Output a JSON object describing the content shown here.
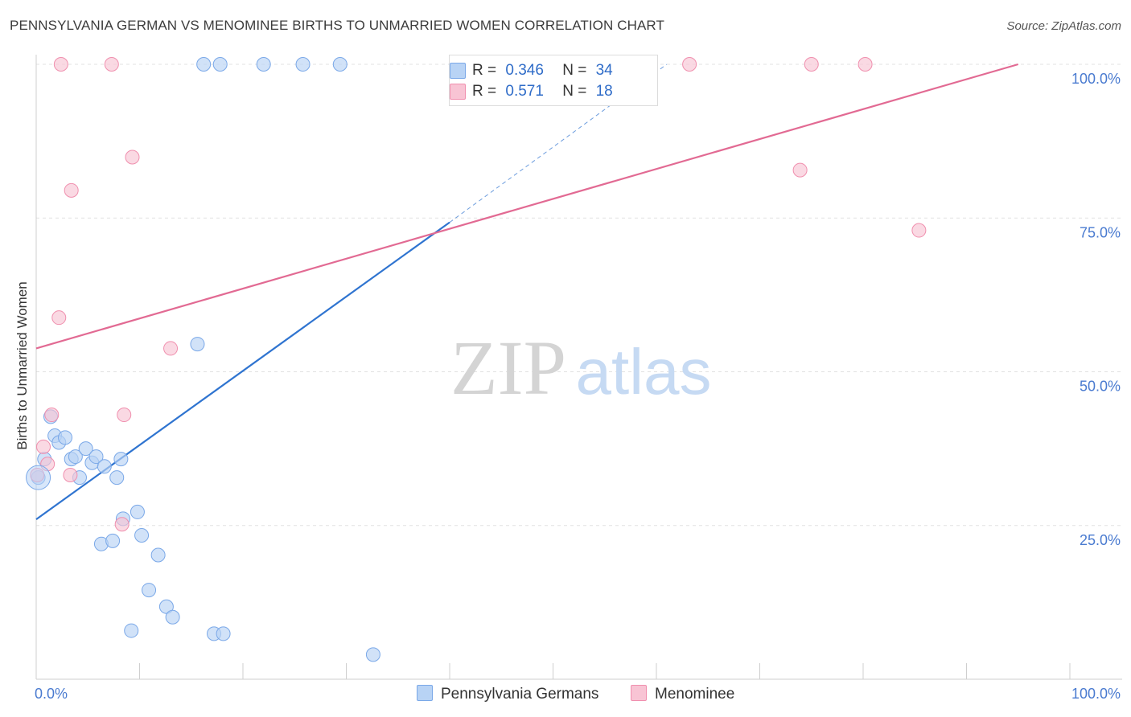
{
  "title": "PENNSYLVANIA GERMAN VS MENOMINEE BIRTHS TO UNMARRIED WOMEN CORRELATION CHART",
  "source": "Source: ZipAtlas.com",
  "watermark": {
    "zip": "ZIP",
    "atlas": "atlas"
  },
  "legend": {
    "rows": [
      {
        "r_label": "R =",
        "r_value": "0.346",
        "n_label": "N =",
        "n_value": "34",
        "color": "#b8d3f5"
      },
      {
        "r_label": "R =",
        "r_value": "0.571",
        "n_label": "N =",
        "n_value": "18",
        "color": "#f8c4d4"
      }
    ]
  },
  "bottom_legend": {
    "items": [
      {
        "label": "Pennsylvania Germans",
        "color": "#b8d3f5"
      },
      {
        "label": "Menominee",
        "color": "#f8c4d4"
      }
    ]
  },
  "chart_data": {
    "type": "scatter",
    "title": "PENNSYLVANIA GERMAN VS MENOMINEE BIRTHS TO UNMARRIED WOMEN CORRELATION CHART",
    "xlabel": "",
    "ylabel": "Births to Unmarried Women",
    "xlim": [
      0,
      100
    ],
    "ylim": [
      0,
      100
    ],
    "x_tick_labels": [
      "0.0%",
      "100.0%"
    ],
    "y_tick_labels": [
      "25.0%",
      "50.0%",
      "75.0%",
      "100.0%"
    ],
    "y_ticks": [
      25,
      50,
      75,
      100
    ],
    "grid": true,
    "legend_position": "top-center",
    "series": [
      {
        "name": "Pennsylvania Germans",
        "color": "#7aa8e8",
        "fill": "#b8d3f5",
        "line_color": "#2f74d0",
        "points": [
          [
            0.2,
            32.8
          ],
          [
            0.8,
            35.8
          ],
          [
            1.4,
            42.7
          ],
          [
            1.8,
            39.6
          ],
          [
            2.2,
            38.5
          ],
          [
            2.8,
            39.3
          ],
          [
            3.4,
            35.8
          ],
          [
            3.8,
            36.2
          ],
          [
            4.2,
            32.8
          ],
          [
            4.8,
            37.5
          ],
          [
            5.4,
            35.2
          ],
          [
            5.8,
            36.2
          ],
          [
            6.6,
            34.6
          ],
          [
            7.8,
            32.8
          ],
          [
            8.2,
            35.8
          ],
          [
            8.4,
            26.1
          ],
          [
            6.3,
            22.0
          ],
          [
            7.4,
            22.5
          ],
          [
            9.8,
            27.2
          ],
          [
            10.2,
            23.4
          ],
          [
            11.8,
            20.2
          ],
          [
            10.9,
            14.5
          ],
          [
            12.6,
            11.8
          ],
          [
            13.2,
            10.1
          ],
          [
            9.2,
            7.9
          ],
          [
            17.2,
            7.4
          ],
          [
            18.1,
            7.4
          ],
          [
            15.6,
            54.5
          ],
          [
            16.2,
            100
          ],
          [
            17.8,
            100
          ],
          [
            22.0,
            100
          ],
          [
            25.8,
            100
          ],
          [
            29.4,
            100
          ],
          [
            32.6,
            4.0
          ]
        ],
        "trend": {
          "x": [
            0,
            40
          ],
          "y": [
            26.0,
            74.3
          ]
        },
        "trend_extension": {
          "x": [
            40,
            61
          ],
          "y": [
            74.3,
            100
          ]
        }
      },
      {
        "name": "Menominee",
        "color": "#f08fae",
        "fill": "#f8c4d4",
        "line_color": "#e26a93",
        "points": [
          [
            0.1,
            33.2
          ],
          [
            0.7,
            37.8
          ],
          [
            1.1,
            35.0
          ],
          [
            1.5,
            43.0
          ],
          [
            2.2,
            58.8
          ],
          [
            2.4,
            100
          ],
          [
            3.4,
            79.5
          ],
          [
            3.3,
            33.2
          ],
          [
            7.3,
            100
          ],
          [
            8.3,
            25.2
          ],
          [
            8.5,
            43.0
          ],
          [
            9.3,
            84.9
          ],
          [
            13.0,
            53.8
          ],
          [
            63.2,
            100
          ],
          [
            73.9,
            82.8
          ],
          [
            75.0,
            100
          ],
          [
            80.2,
            100
          ],
          [
            85.4,
            73.0
          ]
        ],
        "trend": {
          "x": [
            0,
            95
          ],
          "y": [
            53.8,
            100
          ]
        }
      }
    ]
  }
}
